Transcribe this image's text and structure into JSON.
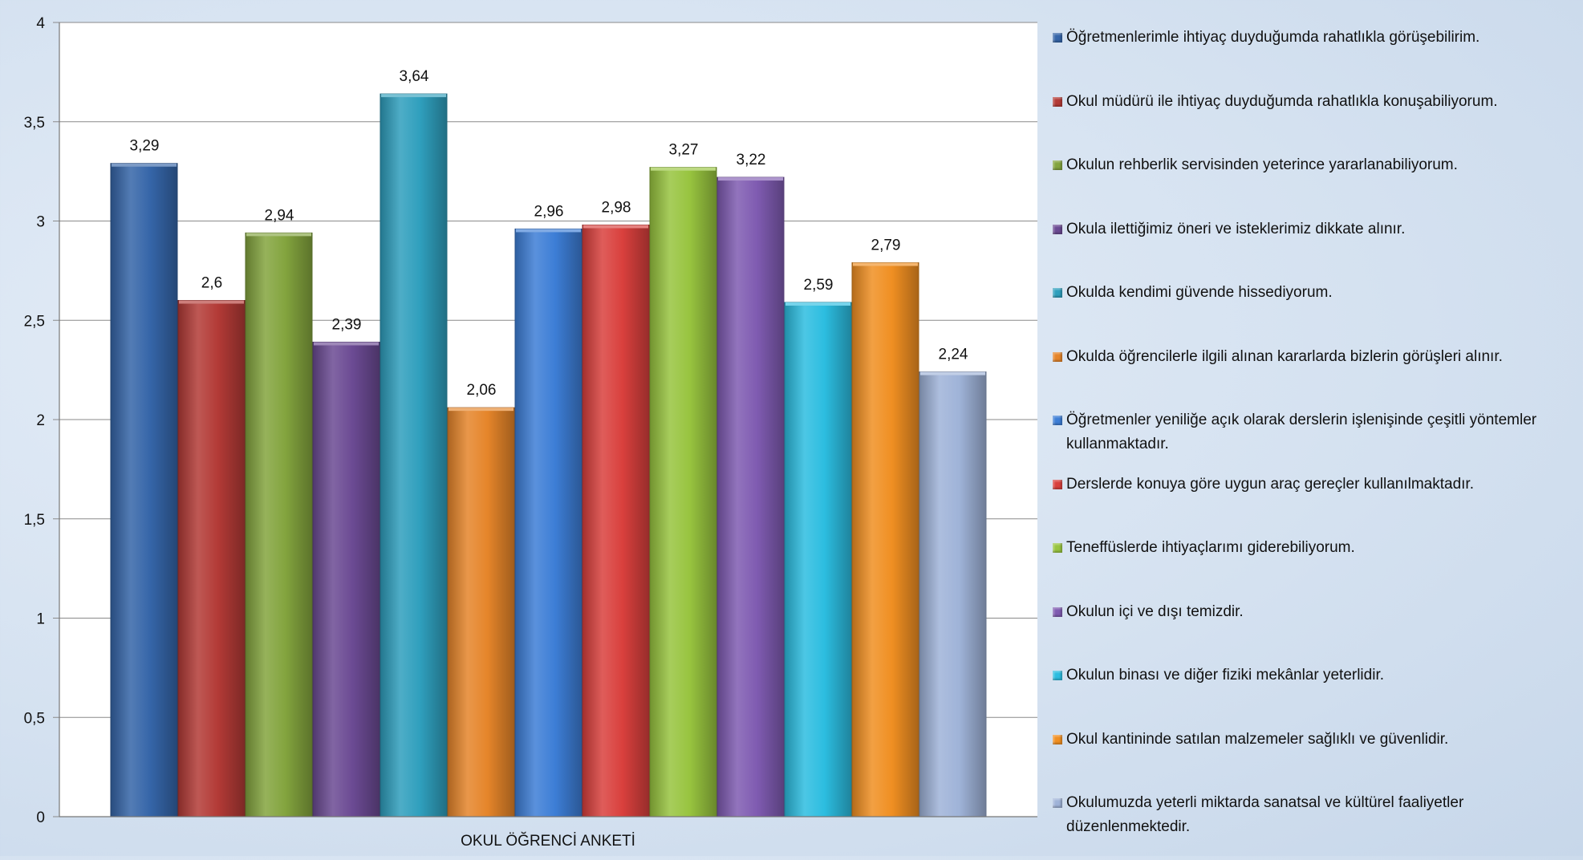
{
  "chart_data": {
    "type": "bar",
    "xlabel": "OKUL ÖĞRENCİ ANKETİ",
    "ylabel": "",
    "ylim": [
      0,
      4
    ],
    "yticks": [
      "0",
      "0,5",
      "1",
      "1,5",
      "2",
      "2,5",
      "3",
      "3,5",
      "4"
    ],
    "ytick_values": [
      0,
      0.5,
      1,
      1.5,
      2,
      2.5,
      3,
      3.5,
      4
    ],
    "grid": true,
    "legend_position": "right",
    "series": [
      {
        "name": "Öğretmenlerimle ihtiyaç duyduğumda rahatlıkla görüşebilirim.",
        "value": 3.29,
        "label": "3,29",
        "color": "#3565a8"
      },
      {
        "name": "Okul müdürü ile ihtiyaç duyduğumda rahatlıkla konuşabiliyorum.",
        "value": 2.6,
        "label": "2,6",
        "color": "#b33a36"
      },
      {
        "name": "Okulun rehberlik servisinden yeterince yararlanabiliyorum.",
        "value": 2.94,
        "label": "2,94",
        "color": "#83a43e"
      },
      {
        "name": "Okula ilettiğimiz öneri ve isteklerimiz dikkate alınır.",
        "value": 2.39,
        "label": "2,39",
        "color": "#6b4a93"
      },
      {
        "name": "Okulda kendimi güvende hissediyorum.",
        "value": 3.64,
        "label": "3,64",
        "color": "#2f9fbd"
      },
      {
        "name": "Okulda öğrencilerle ilgili alınan kararlarda bizlerin görüşleri alınır.",
        "value": 2.06,
        "label": "2,06",
        "color": "#e5852a"
      },
      {
        "name": "Öğretmenler yeniliğe açık olarak derslerin işlenişinde çeşitli yöntemler kullanmaktadır.",
        "value": 2.96,
        "label": "2,96",
        "color": "#3d7ed6"
      },
      {
        "name": "Derslerde konuya göre uygun araç gereçler kullanılmaktadır.",
        "value": 2.98,
        "label": "2,98",
        "color": "#d9403d"
      },
      {
        "name": "Teneffüslerde ihtiyaçlarımı giderebiliyorum.",
        "value": 3.27,
        "label": "3,27",
        "color": "#98c43f"
      },
      {
        "name": "Okulun içi ve dışı temizdir.",
        "value": 3.22,
        "label": "3,22",
        "color": "#7f5bb1"
      },
      {
        "name": "Okulun binası ve diğer fiziki mekânlar yeterlidir.",
        "value": 2.59,
        "label": "2,59",
        "color": "#2cbde0"
      },
      {
        "name": "Okul kantininde satılan malzemeler sağlıklı ve güvenlidir.",
        "value": 2.79,
        "label": "2,79",
        "color": "#f08f22"
      },
      {
        "name": "Okulumuzda yeterli miktarda sanatsal ve kültürel faaliyetler düzenlenmektedir.",
        "value": 2.24,
        "label": "2,24",
        "color": "#9fb3d8"
      }
    ]
  }
}
